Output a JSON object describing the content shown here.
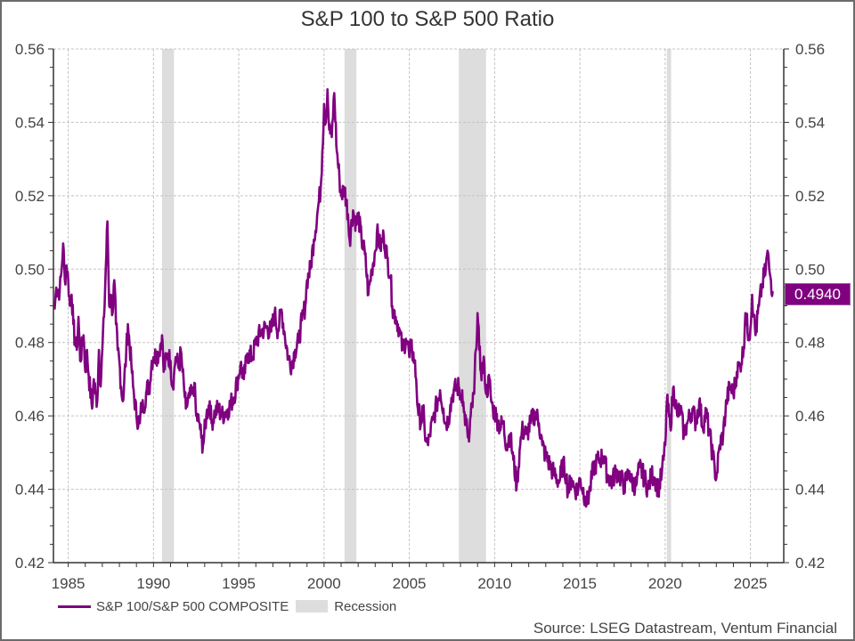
{
  "chart_data": {
    "type": "line",
    "title": "S&P 100 to S&P 500 Ratio",
    "xlabel": "",
    "ylabel": "",
    "xlim": [
      1984.0,
      2026.9
    ],
    "ylim": [
      0.42,
      0.56
    ],
    "y_ticks": [
      "0.42",
      "0.44",
      "0.46",
      "0.48",
      "0.50",
      "0.52",
      "0.54",
      "0.56"
    ],
    "y_tick_values": [
      0.42,
      0.44,
      0.46,
      0.48,
      0.5,
      0.52,
      0.54,
      0.56
    ],
    "x_ticks": [
      "1985",
      "1990",
      "1995",
      "2000",
      "2005",
      "2010",
      "2015",
      "2020",
      "2025"
    ],
    "x_tick_values": [
      1985,
      1990,
      1995,
      2000,
      2005,
      2010,
      2015,
      2020,
      2025
    ],
    "grid": true,
    "dual_y_axis": true,
    "legend_position": "bottom-left",
    "series": [
      {
        "name": "S&P 100/S&P 500 COMPOSITE",
        "color": "#800080",
        "points": [
          [
            1984.2,
            0.489
          ],
          [
            1984.3,
            0.495
          ],
          [
            1984.5,
            0.494
          ],
          [
            1984.6,
            0.499
          ],
          [
            1984.7,
            0.507
          ],
          [
            1984.8,
            0.497
          ],
          [
            1984.9,
            0.501
          ],
          [
            1985.0,
            0.497
          ],
          [
            1985.1,
            0.49
          ],
          [
            1985.2,
            0.493
          ],
          [
            1985.3,
            0.485
          ],
          [
            1985.4,
            0.48
          ],
          [
            1985.5,
            0.478
          ],
          [
            1985.6,
            0.487
          ],
          [
            1985.7,
            0.475
          ],
          [
            1985.9,
            0.482
          ],
          [
            1986.0,
            0.472
          ],
          [
            1986.1,
            0.478
          ],
          [
            1986.2,
            0.471
          ],
          [
            1986.4,
            0.462
          ],
          [
            1986.5,
            0.47
          ],
          [
            1986.6,
            0.466
          ],
          [
            1986.7,
            0.464
          ],
          [
            1986.8,
            0.478
          ],
          [
            1986.9,
            0.468
          ],
          [
            1987.0,
            0.478
          ],
          [
            1987.1,
            0.487
          ],
          [
            1987.3,
            0.513
          ],
          [
            1987.4,
            0.49
          ],
          [
            1987.5,
            0.493
          ],
          [
            1987.6,
            0.488
          ],
          [
            1987.7,
            0.497
          ],
          [
            1987.8,
            0.485
          ],
          [
            1987.9,
            0.478
          ],
          [
            1988.0,
            0.475
          ],
          [
            1988.1,
            0.468
          ],
          [
            1988.2,
            0.464
          ],
          [
            1988.4,
            0.477
          ],
          [
            1988.5,
            0.485
          ],
          [
            1988.7,
            0.474
          ],
          [
            1988.8,
            0.468
          ],
          [
            1989.0,
            0.46
          ],
          [
            1989.2,
            0.458
          ],
          [
            1989.3,
            0.463
          ],
          [
            1989.4,
            0.462
          ],
          [
            1989.6,
            0.467
          ],
          [
            1989.8,
            0.469
          ],
          [
            1989.9,
            0.475
          ],
          [
            1990.0,
            0.476
          ],
          [
            1990.3,
            0.477
          ],
          [
            1990.5,
            0.482
          ],
          [
            1990.6,
            0.472
          ],
          [
            1990.8,
            0.477
          ],
          [
            1991.0,
            0.475
          ],
          [
            1991.1,
            0.468
          ],
          [
            1991.2,
            0.471
          ],
          [
            1991.3,
            0.476
          ],
          [
            1991.5,
            0.473
          ],
          [
            1991.6,
            0.478
          ],
          [
            1991.7,
            0.472
          ],
          [
            1991.8,
            0.467
          ],
          [
            1991.9,
            0.462
          ],
          [
            1992.1,
            0.465
          ],
          [
            1992.3,
            0.466
          ],
          [
            1992.4,
            0.469
          ],
          [
            1992.5,
            0.46
          ],
          [
            1992.7,
            0.458
          ],
          [
            1992.8,
            0.454
          ],
          [
            1992.9,
            0.452
          ],
          [
            1993.1,
            0.46
          ],
          [
            1993.3,
            0.464
          ],
          [
            1993.4,
            0.458
          ],
          [
            1993.6,
            0.461
          ],
          [
            1993.8,
            0.462
          ],
          [
            1994.0,
            0.46
          ],
          [
            1994.2,
            0.461
          ],
          [
            1994.4,
            0.462
          ],
          [
            1994.7,
            0.465
          ],
          [
            1994.9,
            0.469
          ],
          [
            1995.1,
            0.474
          ],
          [
            1995.3,
            0.47
          ],
          [
            1995.5,
            0.477
          ],
          [
            1995.8,
            0.476
          ],
          [
            1996.0,
            0.48
          ],
          [
            1996.3,
            0.483
          ],
          [
            1996.6,
            0.484
          ],
          [
            1996.9,
            0.483
          ],
          [
            1997.1,
            0.488
          ],
          [
            1997.3,
            0.483
          ],
          [
            1997.5,
            0.489
          ],
          [
            1997.7,
            0.482
          ],
          [
            1997.9,
            0.476
          ],
          [
            1998.1,
            0.474
          ],
          [
            1998.3,
            0.478
          ],
          [
            1998.5,
            0.48
          ],
          [
            1998.7,
            0.486
          ],
          [
            1998.9,
            0.49
          ],
          [
            1999.0,
            0.497
          ],
          [
            1999.2,
            0.5
          ],
          [
            1999.4,
            0.508
          ],
          [
            1999.6,
            0.515
          ],
          [
            1999.8,
            0.522
          ],
          [
            1999.9,
            0.532
          ],
          [
            2000.0,
            0.545
          ],
          [
            2000.1,
            0.54
          ],
          [
            2000.2,
            0.549
          ],
          [
            2000.3,
            0.538
          ],
          [
            2000.45,
            0.536
          ],
          [
            2000.6,
            0.548
          ],
          [
            2000.75,
            0.532
          ],
          [
            2000.9,
            0.525
          ],
          [
            2001.0,
            0.52
          ],
          [
            2001.2,
            0.522
          ],
          [
            2001.4,
            0.515
          ],
          [
            2001.5,
            0.508
          ],
          [
            2001.7,
            0.516
          ],
          [
            2001.9,
            0.512
          ],
          [
            2002.0,
            0.515
          ],
          [
            2002.2,
            0.508
          ],
          [
            2002.4,
            0.504
          ],
          [
            2002.6,
            0.493
          ],
          [
            2002.8,
            0.5
          ],
          [
            2003.0,
            0.505
          ],
          [
            2003.1,
            0.51
          ],
          [
            2003.3,
            0.506
          ],
          [
            2003.5,
            0.509
          ],
          [
            2003.7,
            0.503
          ],
          [
            2003.9,
            0.498
          ],
          [
            2004.0,
            0.49
          ],
          [
            2004.2,
            0.487
          ],
          [
            2004.4,
            0.484
          ],
          [
            2004.6,
            0.478
          ],
          [
            2004.8,
            0.481
          ],
          [
            2004.9,
            0.48
          ],
          [
            2005.0,
            0.476
          ],
          [
            2005.1,
            0.479
          ],
          [
            2005.3,
            0.475
          ],
          [
            2005.4,
            0.47
          ],
          [
            2005.5,
            0.462
          ],
          [
            2005.7,
            0.458
          ],
          [
            2005.8,
            0.462
          ],
          [
            2005.9,
            0.456
          ],
          [
            2006.0,
            0.453
          ],
          [
            2006.1,
            0.452
          ],
          [
            2006.2,
            0.455
          ],
          [
            2006.4,
            0.459
          ],
          [
            2006.6,
            0.463
          ],
          [
            2006.8,
            0.467
          ],
          [
            2007.0,
            0.462
          ],
          [
            2007.1,
            0.458
          ],
          [
            2007.3,
            0.459
          ],
          [
            2007.4,
            0.463
          ],
          [
            2007.6,
            0.467
          ],
          [
            2007.9,
            0.468
          ],
          [
            2008.0,
            0.465
          ],
          [
            2008.1,
            0.467
          ],
          [
            2008.2,
            0.461
          ],
          [
            2008.4,
            0.456
          ],
          [
            2008.5,
            0.453
          ],
          [
            2008.6,
            0.46
          ],
          [
            2008.8,
            0.466
          ],
          [
            2008.9,
            0.478
          ],
          [
            2009.0,
            0.488
          ],
          [
            2009.1,
            0.478
          ],
          [
            2009.2,
            0.472
          ],
          [
            2009.4,
            0.474
          ],
          [
            2009.5,
            0.466
          ],
          [
            2009.7,
            0.47
          ],
          [
            2009.8,
            0.464
          ],
          [
            2009.9,
            0.462
          ],
          [
            2010.1,
            0.46
          ],
          [
            2010.3,
            0.457
          ],
          [
            2010.5,
            0.458
          ],
          [
            2010.7,
            0.452
          ],
          [
            2010.9,
            0.455
          ],
          [
            2011.1,
            0.448
          ],
          [
            2011.3,
            0.441
          ],
          [
            2011.5,
            0.452
          ],
          [
            2011.6,
            0.456
          ],
          [
            2011.9,
            0.455
          ],
          [
            2012.1,
            0.458
          ],
          [
            2012.4,
            0.461
          ],
          [
            2012.6,
            0.458
          ],
          [
            2012.8,
            0.452
          ],
          [
            2013.0,
            0.449
          ],
          [
            2013.3,
            0.446
          ],
          [
            2013.5,
            0.444
          ],
          [
            2013.8,
            0.442
          ],
          [
            2014.0,
            0.447
          ],
          [
            2014.2,
            0.444
          ],
          [
            2014.3,
            0.439
          ],
          [
            2014.5,
            0.443
          ],
          [
            2014.7,
            0.44
          ],
          [
            2014.9,
            0.44
          ],
          [
            2015.0,
            0.443
          ],
          [
            2015.3,
            0.438
          ],
          [
            2015.4,
            0.436
          ],
          [
            2015.6,
            0.44
          ],
          [
            2015.8,
            0.446
          ],
          [
            2016.1,
            0.448
          ],
          [
            2016.4,
            0.449
          ],
          [
            2016.6,
            0.444
          ],
          [
            2016.9,
            0.442
          ],
          [
            2017.1,
            0.445
          ],
          [
            2017.3,
            0.444
          ],
          [
            2017.6,
            0.441
          ],
          [
            2017.9,
            0.445
          ],
          [
            2018.0,
            0.442
          ],
          [
            2018.3,
            0.441
          ],
          [
            2018.5,
            0.446
          ],
          [
            2018.8,
            0.443
          ],
          [
            2019.0,
            0.44
          ],
          [
            2019.2,
            0.444
          ],
          [
            2019.4,
            0.443
          ],
          [
            2019.6,
            0.44
          ],
          [
            2019.8,
            0.444
          ],
          [
            2019.9,
            0.448
          ],
          [
            2020.0,
            0.452
          ],
          [
            2020.1,
            0.464
          ],
          [
            2020.3,
            0.457
          ],
          [
            2020.5,
            0.468
          ],
          [
            2020.7,
            0.46
          ],
          [
            2020.9,
            0.462
          ],
          [
            2021.1,
            0.455
          ],
          [
            2021.3,
            0.458
          ],
          [
            2021.6,
            0.462
          ],
          [
            2021.8,
            0.458
          ],
          [
            2022.0,
            0.464
          ],
          [
            2022.2,
            0.457
          ],
          [
            2022.4,
            0.461
          ],
          [
            2022.6,
            0.455
          ],
          [
            2022.8,
            0.449
          ],
          [
            2022.9,
            0.446
          ],
          [
            2023.0,
            0.443
          ],
          [
            2023.2,
            0.452
          ],
          [
            2023.4,
            0.455
          ],
          [
            2023.6,
            0.464
          ],
          [
            2023.8,
            0.468
          ],
          [
            2024.0,
            0.466
          ],
          [
            2024.2,
            0.472
          ],
          [
            2024.4,
            0.474
          ],
          [
            2024.6,
            0.478
          ],
          [
            2024.7,
            0.488
          ],
          [
            2024.9,
            0.482
          ],
          [
            2025.0,
            0.484
          ],
          [
            2025.1,
            0.493
          ],
          [
            2025.2,
            0.487
          ],
          [
            2025.3,
            0.482
          ],
          [
            2025.5,
            0.49
          ],
          [
            2025.7,
            0.496
          ],
          [
            2025.9,
            0.5
          ],
          [
            2026.0,
            0.505
          ],
          [
            2026.1,
            0.5
          ],
          [
            2026.2,
            0.497
          ],
          [
            2026.3,
            0.494
          ]
        ]
      }
    ],
    "recessions": [
      {
        "start": 1990.5,
        "end": 1991.2
      },
      {
        "start": 2001.2,
        "end": 2001.9
      },
      {
        "start": 2007.9,
        "end": 2009.5
      },
      {
        "start": 2020.1,
        "end": 2020.35
      }
    ],
    "last_value_label": "0.4940",
    "last_value": 0.494,
    "legend": [
      {
        "label": "S&P 100/S&P 500 COMPOSITE",
        "type": "line",
        "color": "#800080"
      },
      {
        "label": "Recession",
        "type": "area",
        "color": "#dddddd"
      }
    ],
    "source": "Source: LSEG Datastream, Ventum Financial"
  }
}
